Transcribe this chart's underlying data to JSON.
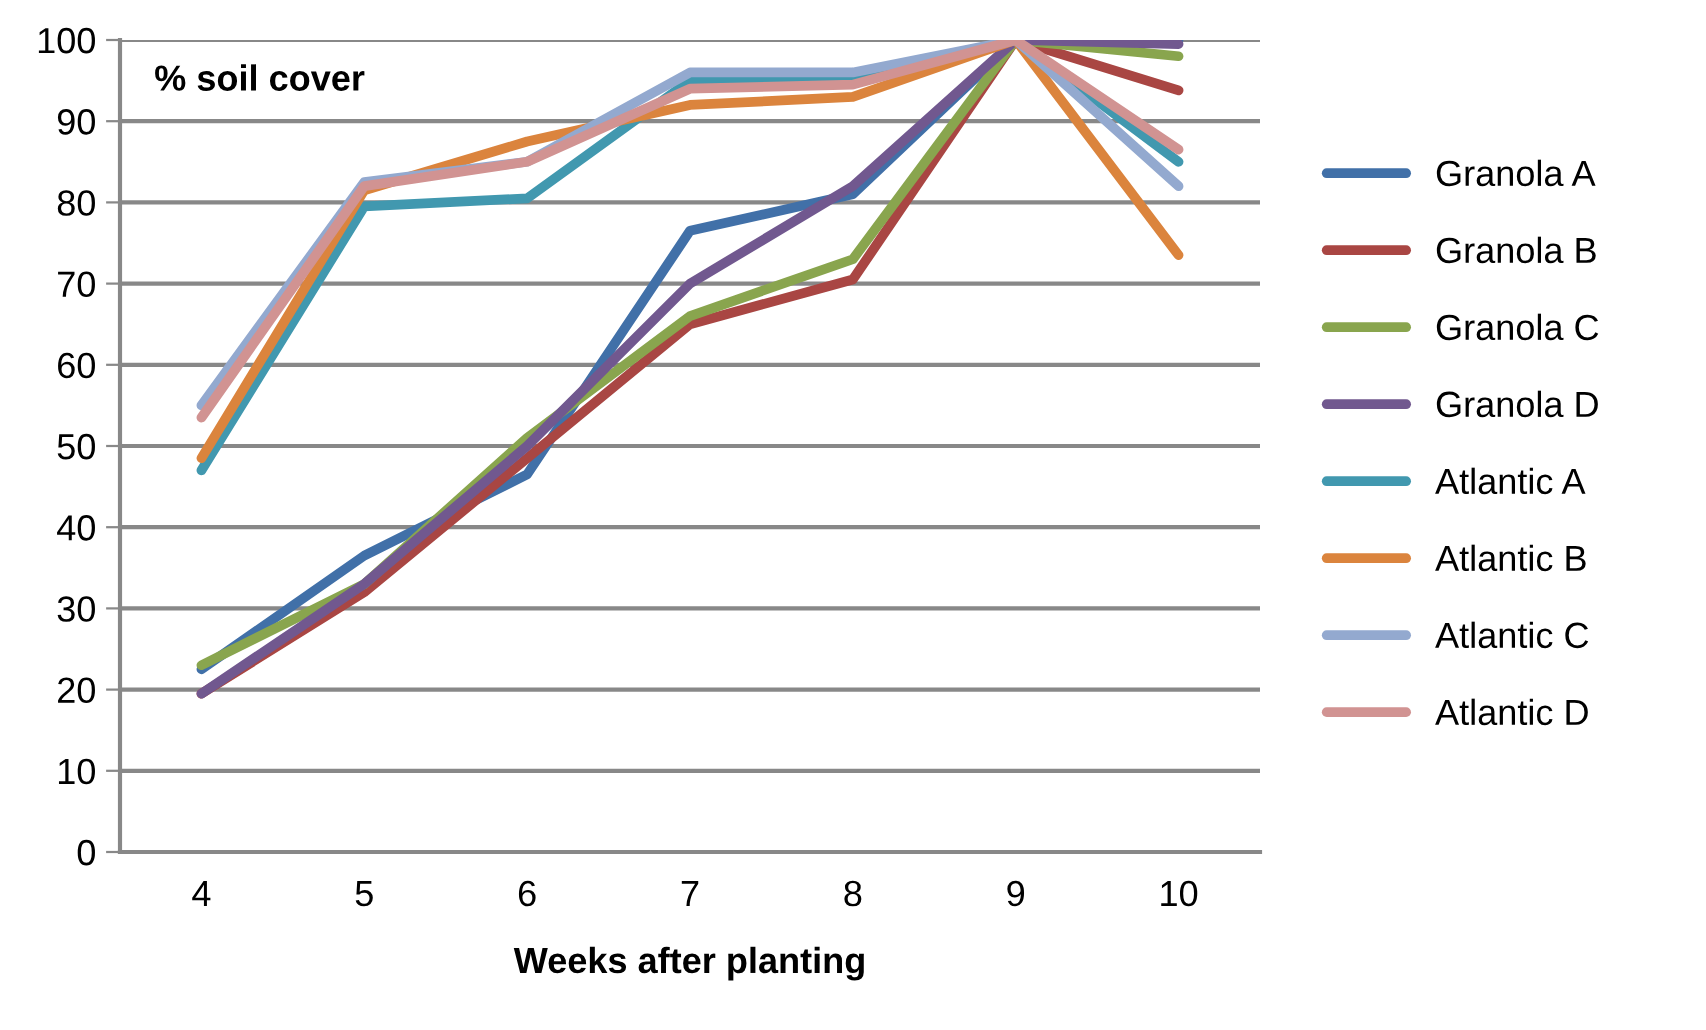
{
  "chart_data": {
    "type": "line",
    "title": "% soil cover",
    "xlabel": "Weeks after planting",
    "categories": [
      "4",
      "5",
      "6",
      "7",
      "8",
      "9",
      "10"
    ],
    "ylim": [
      0,
      100
    ],
    "yticks": [
      0,
      10,
      20,
      30,
      40,
      50,
      60,
      70,
      80,
      90,
      100
    ],
    "grid": "y",
    "legend": "right",
    "marker": "none",
    "line_style": "solid",
    "series": [
      {
        "name": "Granola A",
        "color": "#4170a8",
        "values": [
          22.5,
          36.5,
          46.5,
          76.5,
          81,
          100,
          100
        ]
      },
      {
        "name": "Granola B",
        "color": "#a94643",
        "values": [
          19.5,
          32,
          48.5,
          65,
          70.5,
          100,
          93.8
        ]
      },
      {
        "name": "Granola C",
        "color": "#89a54e",
        "values": [
          23,
          33,
          51,
          66,
          73,
          100,
          98
        ]
      },
      {
        "name": "Granola D",
        "color": "#71588f",
        "values": [
          19.5,
          33,
          50,
          70,
          82,
          100,
          99.5
        ]
      },
      {
        "name": "Atlantic A",
        "color": "#4198af",
        "values": [
          47,
          79.5,
          80.5,
          95,
          95,
          100,
          85
        ]
      },
      {
        "name": "Atlantic B",
        "color": "#db843d",
        "values": [
          48.5,
          81.5,
          87.5,
          92,
          93,
          100,
          73.5
        ]
      },
      {
        "name": "Atlantic C",
        "color": "#93a9cf",
        "values": [
          55,
          82.5,
          85,
          96,
          96,
          100,
          82
        ]
      },
      {
        "name": "Atlantic D",
        "color": "#d19392",
        "values": [
          53.5,
          82,
          85,
          94,
          94.5,
          100,
          86.5
        ]
      }
    ]
  }
}
